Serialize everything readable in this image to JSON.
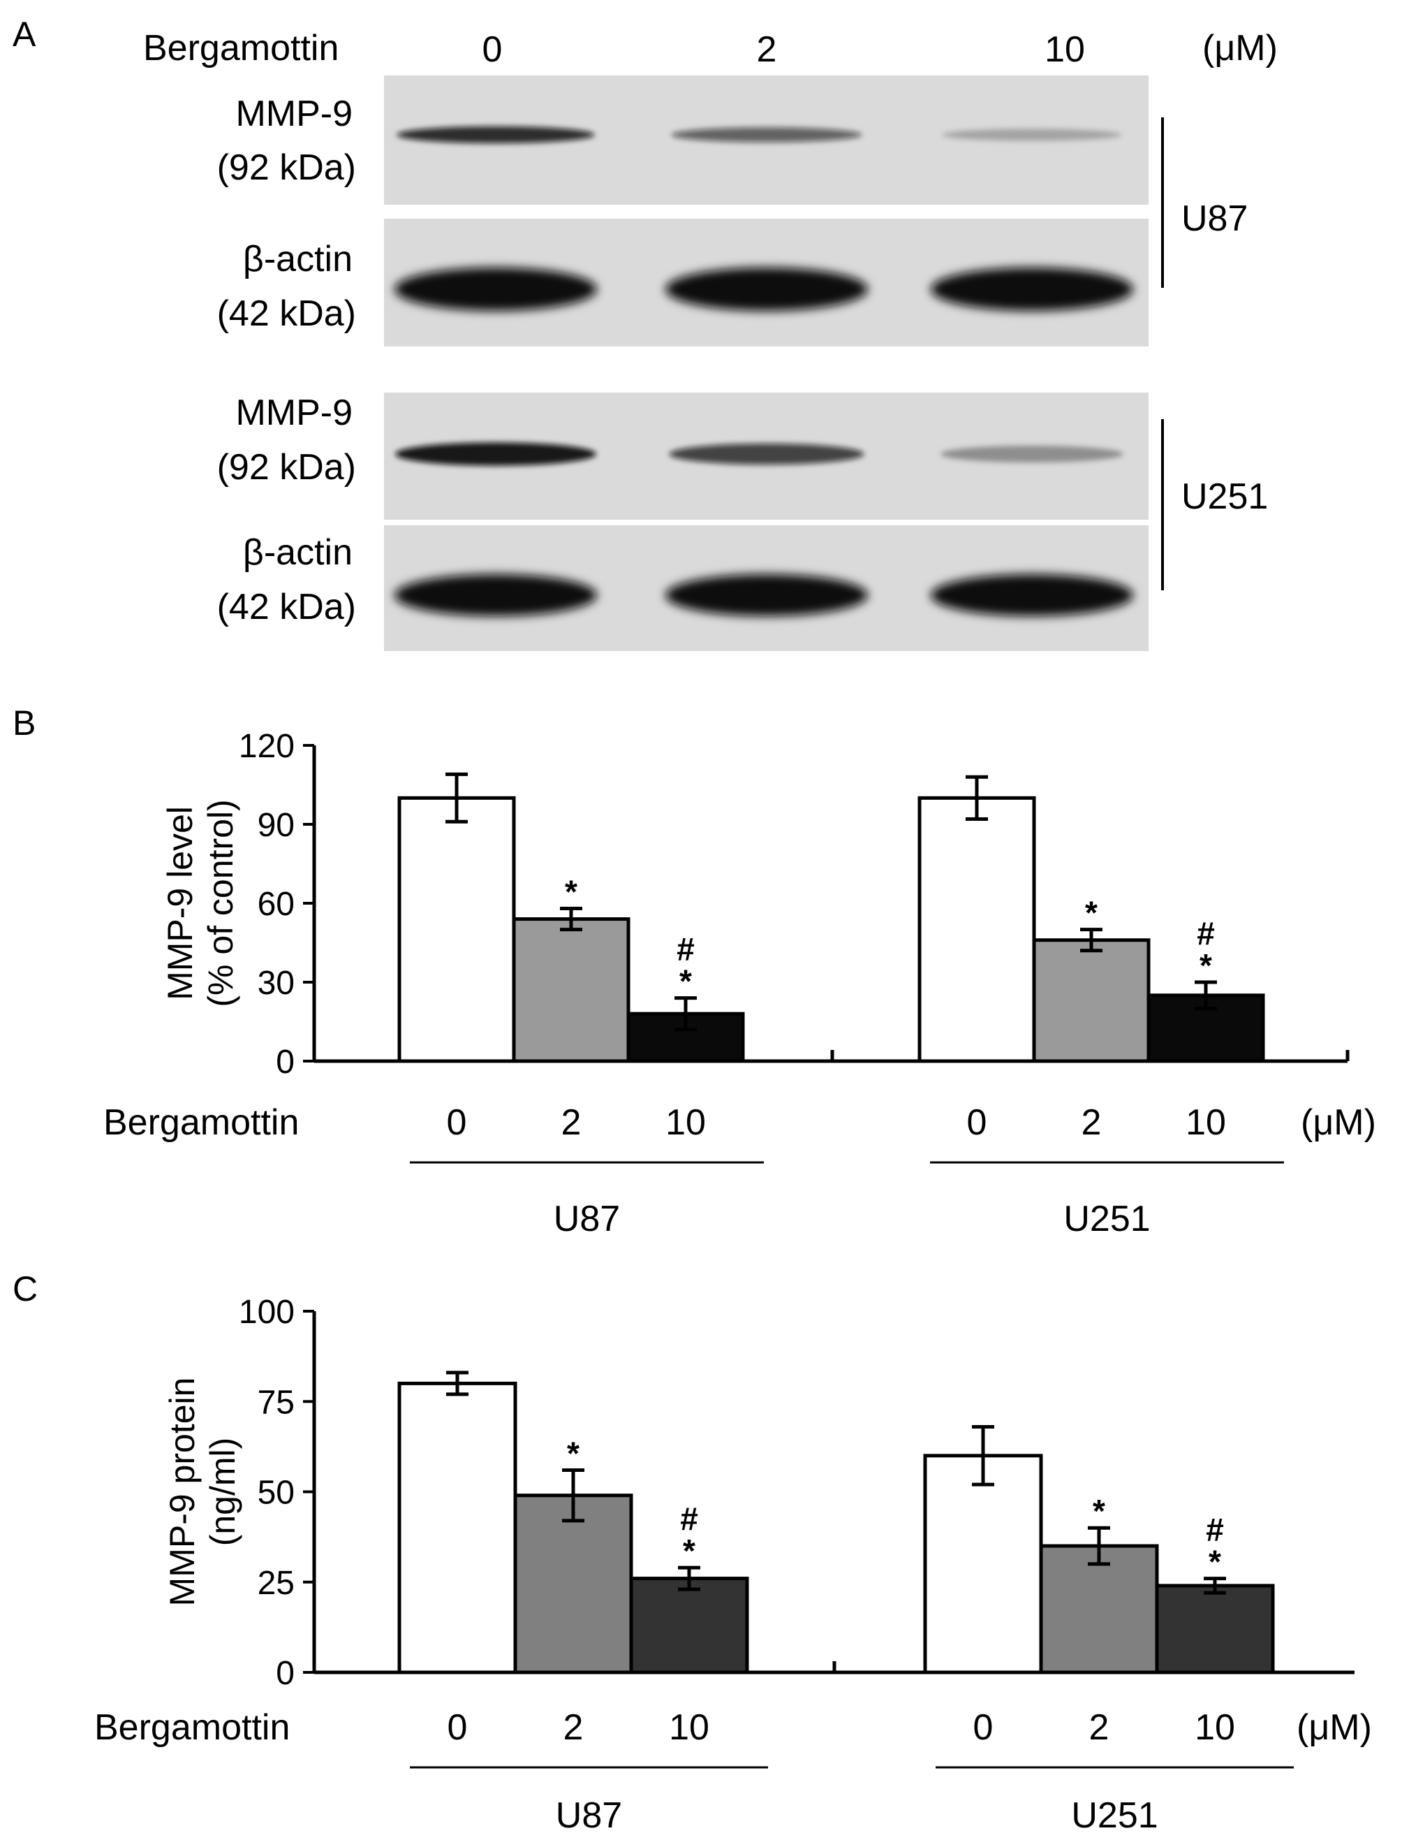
{
  "panels": {
    "a": "A",
    "b": "B",
    "c": "C"
  },
  "western_blot": {
    "treatment_label": "Bergamottin",
    "unit": "(μM)",
    "doses": [
      "0",
      "2",
      "10"
    ],
    "cell_lines": [
      {
        "name": "U87",
        "blots": [
          {
            "protein": "MMP-9",
            "size": "(92 kDa)",
            "band_intensity": [
              0.85,
              0.6,
              0.25
            ]
          },
          {
            "protein": "β-actin",
            "size": "(42 kDa)",
            "band_intensity": [
              1.0,
              1.0,
              1.0
            ]
          }
        ]
      },
      {
        "name": "U251",
        "blots": [
          {
            "protein": "MMP-9",
            "size": "(92 kDa)",
            "band_intensity": [
              0.95,
              0.75,
              0.35
            ]
          },
          {
            "protein": "β-actin",
            "size": "(42 kDa)",
            "band_intensity": [
              1.0,
              1.0,
              1.0
            ]
          }
        ]
      }
    ]
  },
  "chart_data": [
    {
      "type": "bar",
      "panel": "B",
      "ylabel": [
        "MMP-9 level",
        "(% of control)"
      ],
      "ylim": [
        0,
        120
      ],
      "yticks": [
        0,
        30,
        60,
        90,
        120
      ],
      "treatment_label": "Bergamottin",
      "unit": "(μM)",
      "groups": [
        {
          "name": "U87",
          "categories": [
            "0",
            "2",
            "10"
          ],
          "values": [
            100,
            54,
            18
          ],
          "errors": [
            9,
            4,
            6
          ],
          "marks": [
            [],
            [
              "*"
            ],
            [
              "#",
              "*"
            ]
          ]
        },
        {
          "name": "U251",
          "categories": [
            "0",
            "2",
            "10"
          ],
          "values": [
            100,
            46,
            25
          ],
          "errors": [
            8,
            4,
            5
          ],
          "marks": [
            [],
            [
              "*"
            ],
            [
              "#",
              "*"
            ]
          ]
        }
      ],
      "colors": [
        "#ffffff",
        "#9a9a9a",
        "#0a0a0a"
      ]
    },
    {
      "type": "bar",
      "panel": "C",
      "ylabel": [
        "MMP-9 protein",
        "(ng/ml)"
      ],
      "ylim": [
        0,
        100
      ],
      "yticks": [
        0,
        25,
        50,
        75,
        100
      ],
      "treatment_label": "Bergamottin",
      "unit": "(μM)",
      "groups": [
        {
          "name": "U87",
          "categories": [
            "0",
            "2",
            "10"
          ],
          "values": [
            80,
            49,
            26
          ],
          "errors": [
            3,
            7,
            3
          ],
          "marks": [
            [],
            [
              "*"
            ],
            [
              "#",
              "*"
            ]
          ]
        },
        {
          "name": "U251",
          "categories": [
            "0",
            "2",
            "10"
          ],
          "values": [
            60,
            35,
            24
          ],
          "errors": [
            8,
            5,
            2
          ],
          "marks": [
            [],
            [
              "*"
            ],
            [
              "#",
              "*"
            ]
          ]
        }
      ],
      "colors": [
        "#ffffff",
        "#808080",
        "#333333"
      ]
    }
  ]
}
